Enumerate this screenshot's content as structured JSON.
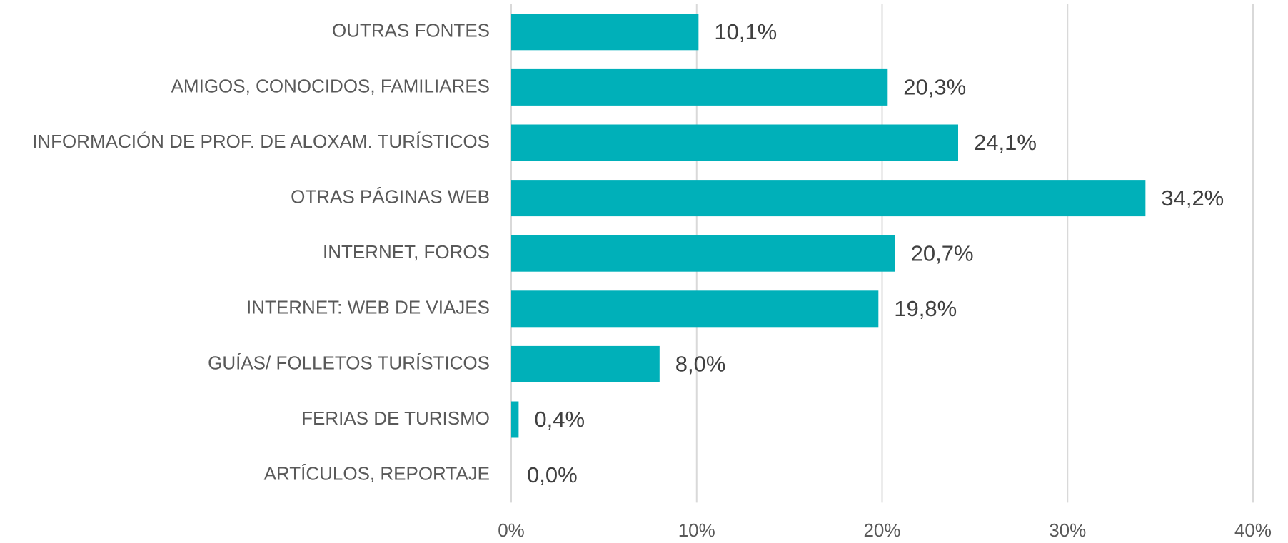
{
  "chart_data": {
    "type": "hbar",
    "categories": [
      "OUTRAS FONTES",
      "AMIGOS, CONOCIDOS, FAMILIARES",
      "INFORMACIÓN DE PROF. DE ALOXAM. TURÍSTICOS",
      "OTRAS PÁGINAS WEB",
      "INTERNET, FOROS",
      "INTERNET: WEB DE VIAJES",
      "GUÍAS/ FOLLETOS TURÍSTICOS",
      "FERIAS DE TURISMO",
      "ARTÍCULOS, REPORTAJE"
    ],
    "values": [
      10.1,
      20.3,
      24.1,
      34.2,
      20.7,
      19.8,
      8.0,
      0.4,
      0.0
    ],
    "value_labels": [
      "10,1%",
      "20,3%",
      "24,1%",
      "34,2%",
      "20,7%",
      "19,8%",
      "8,0%",
      "0,4%",
      "0,0%"
    ],
    "color": "#00b0b9",
    "xlim": [
      0,
      40
    ],
    "xticks": [
      {
        "value": 0,
        "label": "0%"
      },
      {
        "value": 10,
        "label": "10%"
      },
      {
        "value": 20,
        "label": "20%"
      },
      {
        "value": 30,
        "label": "30%"
      },
      {
        "value": 40,
        "label": "40%"
      }
    ],
    "grid": true
  }
}
